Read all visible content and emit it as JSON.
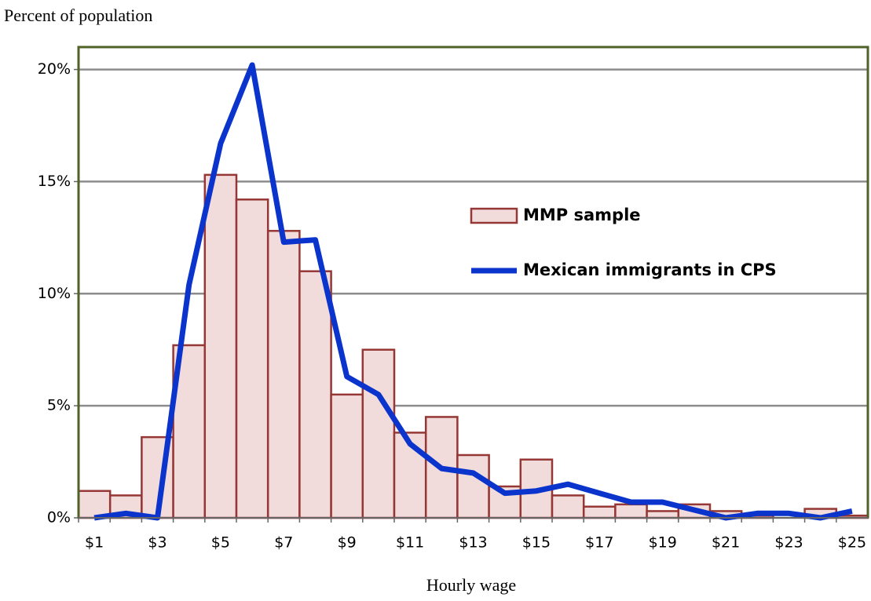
{
  "chart_data": {
    "type": "bar",
    "title": "Percent of population",
    "x_label": "Hourly wage",
    "categories": [
      "$1",
      null,
      "$3",
      null,
      "$5",
      null,
      "$7",
      null,
      "$9",
      null,
      "$11",
      null,
      "$13",
      null,
      "$15",
      null,
      "$17",
      null,
      "$19",
      null,
      "$21",
      null,
      "$23",
      null,
      "$25"
    ],
    "series": [
      {
        "name": "MMP sample",
        "type": "bar",
        "color": "#f2dcdb",
        "edge_color": "#953735",
        "values": [
          1.2,
          1.0,
          3.6,
          7.7,
          15.3,
          14.2,
          12.8,
          11.0,
          5.5,
          7.5,
          3.8,
          4.5,
          2.8,
          1.4,
          2.6,
          1.0,
          0.5,
          0.6,
          0.3,
          0.6,
          0.3,
          0.1,
          0,
          0.4,
          0.1
        ]
      },
      {
        "name": "Mexican immigrants in CPS",
        "type": "line",
        "color": "#0a34cc",
        "values": [
          0,
          0.2,
          0,
          10.4,
          16.7,
          20.2,
          12.3,
          12.4,
          6.3,
          5.5,
          3.3,
          2.2,
          2.0,
          1.1,
          1.2,
          1.5,
          1.1,
          0.7,
          0.7,
          0.35,
          0,
          0.2,
          0.2,
          0,
          0.3
        ]
      }
    ],
    "ylim": [
      0,
      21
    ],
    "yticks": [
      {
        "value": 0,
        "label": "0%"
      },
      {
        "value": 5,
        "label": "5%"
      },
      {
        "value": 10,
        "label": "10%"
      },
      {
        "value": 15,
        "label": "15%"
      },
      {
        "value": 20,
        "label": "20%"
      }
    ],
    "grid": true
  }
}
